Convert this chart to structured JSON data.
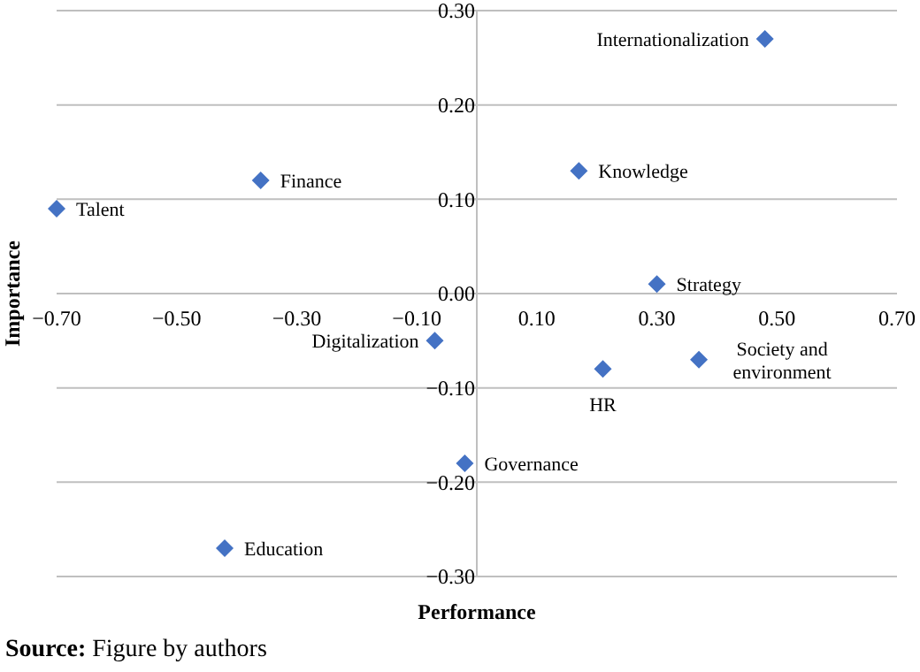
{
  "chart_data": {
    "type": "scatter",
    "xlabel": "Performance",
    "ylabel": "Importance",
    "x": [
      -0.7,
      -0.36,
      -0.07,
      -0.42,
      -0.02,
      0.48,
      0.17,
      0.3,
      0.21,
      0.37
    ],
    "values": [
      0.09,
      0.12,
      -0.05,
      -0.27,
      -0.18,
      0.27,
      0.13,
      0.01,
      -0.08,
      -0.07
    ],
    "color": "#4472c4",
    "marker": "diamond",
    "grid": "y",
    "xlim": [
      -0.7,
      0.7
    ],
    "xticks": [
      {
        "value": -0.7,
        "label": "−0.70"
      },
      {
        "value": -0.5,
        "label": "−0.50"
      },
      {
        "value": -0.3,
        "label": "−0.30"
      },
      {
        "value": -0.1,
        "label": "−0.10"
      },
      {
        "value": 0.1,
        "label": "0.10"
      },
      {
        "value": 0.3,
        "label": "0.30"
      },
      {
        "value": 0.5,
        "label": "0.50"
      },
      {
        "value": 0.7,
        "label": "0.70"
      }
    ],
    "ylim": [
      -0.3,
      0.3
    ],
    "yticks": [
      {
        "value": -0.3,
        "label": "−0.30"
      },
      {
        "value": -0.2,
        "label": "−0.20"
      },
      {
        "value": -0.1,
        "label": "−0.10"
      },
      {
        "value": 0,
        "label": "0.00"
      },
      {
        "value": 0.1,
        "label": "0.10"
      },
      {
        "value": 0.2,
        "label": "0.20"
      },
      {
        "value": 0.3,
        "label": "0.30"
      }
    ],
    "annotations": [
      {
        "text": "Talent",
        "x": -0.7,
        "y": 0.09
      },
      {
        "text": "Finance",
        "x": -0.36,
        "y": 0.12
      },
      {
        "text": "Digitalization",
        "x": -0.07,
        "y": -0.05
      },
      {
        "text": "Education",
        "x": -0.42,
        "y": -0.27
      },
      {
        "text": "Governance",
        "x": -0.02,
        "y": -0.18
      },
      {
        "text": "Internationalization",
        "x": 0.48,
        "y": 0.27
      },
      {
        "text": "Knowledge",
        "x": 0.17,
        "y": 0.13
      },
      {
        "text": "Strategy",
        "x": 0.3,
        "y": 0.01
      },
      {
        "text": "HR",
        "x": 0.21,
        "y": -0.08
      },
      {
        "text": "Society and environment",
        "x": 0.37,
        "y": -0.07
      },
      "Source: Figure by authors"
    ]
  }
}
